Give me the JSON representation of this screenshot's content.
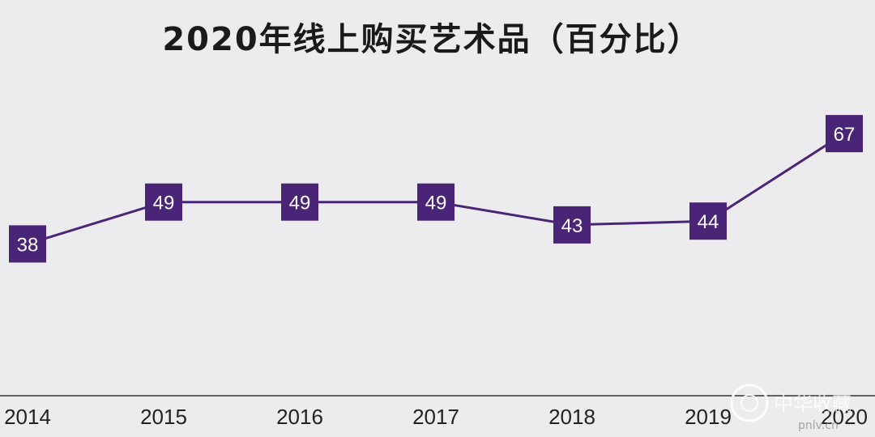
{
  "chart_data": {
    "type": "line",
    "title": "2020年线上购买艺术品（百分比）",
    "xlabel": "",
    "ylabel": "",
    "categories": [
      "2014",
      "2015",
      "2016",
      "2017",
      "2018",
      "2019",
      "2020"
    ],
    "series": [
      {
        "name": "线上购买艺术品（百分比）",
        "values": [
          38,
          49,
          49,
          49,
          43,
          44,
          67
        ]
      }
    ],
    "ylim": [
      0,
      100
    ],
    "grid": false,
    "legend": "none"
  },
  "colors": {
    "background": "#ececee",
    "line": "#4a2577",
    "marker": "#4a2577",
    "marker_text": "#ffffff",
    "axis": "#333333",
    "title": "#1a1a1a"
  },
  "watermark": {
    "text": "中华收藏",
    "url": "pnlv.cn"
  }
}
